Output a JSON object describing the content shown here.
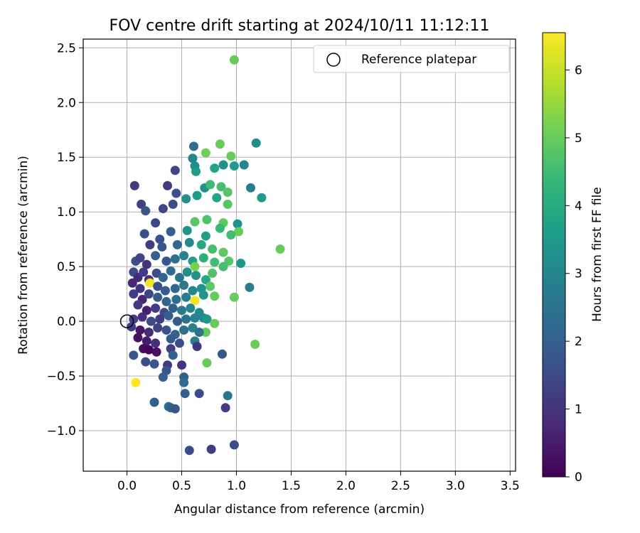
{
  "chart_data": {
    "type": "scatter",
    "title": "FOV centre drift starting at 2024/10/11 11:12:11",
    "xlabel": "Angular distance from reference (arcmin)",
    "ylabel": "Rotation from reference (arcmin)",
    "xlim": [
      -0.4,
      3.55
    ],
    "ylim": [
      -1.37,
      2.58
    ],
    "xticks": [
      0.0,
      0.5,
      1.0,
      1.5,
      2.0,
      2.5,
      3.0,
      3.5
    ],
    "xtick_labels": [
      "0.0",
      "0.5",
      "1.0",
      "1.5",
      "2.0",
      "2.5",
      "3.0",
      "3.5"
    ],
    "yticks": [
      -1.0,
      -0.5,
      0.0,
      0.5,
      1.0,
      1.5,
      2.0,
      2.5
    ],
    "ytick_labels": [
      "−1.0",
      "−0.5",
      "0.0",
      "0.5",
      "1.0",
      "1.5",
      "2.0",
      "2.5"
    ],
    "grid": true,
    "legend": {
      "placement": "top-right",
      "label": "Reference platepar"
    },
    "reference_point": {
      "x": 0.0,
      "y": 0.0
    },
    "colorbar": {
      "label": "Hours from first FF file",
      "range": [
        0,
        6.55
      ],
      "ticks": [
        0,
        1,
        2,
        3,
        4,
        5,
        6
      ],
      "tick_labels": [
        "0",
        "1",
        "2",
        "3",
        "4",
        "5",
        "6"
      ],
      "colormap": "viridis",
      "colors": [
        "#440154",
        "#482878",
        "#3e4989",
        "#31688e",
        "#26828e",
        "#1f9e89",
        "#35b779",
        "#6ece58",
        "#b5de2b",
        "#fde725"
      ]
    },
    "points": [
      [
        0.98,
        2.39,
        5.0
      ],
      [
        1.18,
        1.63,
        3.2
      ],
      [
        0.85,
        1.62,
        5.0
      ],
      [
        0.72,
        1.54,
        5.1
      ],
      [
        0.95,
        1.51,
        5.0
      ],
      [
        0.61,
        1.6,
        2.3
      ],
      [
        0.6,
        1.49,
        3.0
      ],
      [
        0.62,
        1.42,
        3.2
      ],
      [
        0.63,
        1.37,
        3.5
      ],
      [
        0.8,
        1.4,
        3.8
      ],
      [
        0.44,
        1.38,
        1.4
      ],
      [
        1.07,
        1.43,
        3.0
      ],
      [
        0.98,
        1.42,
        3.6
      ],
      [
        0.88,
        1.43,
        3.3
      ],
      [
        0.07,
        1.24,
        1.2
      ],
      [
        0.37,
        1.24,
        1.1
      ],
      [
        0.45,
        1.17,
        1.6
      ],
      [
        1.13,
        1.22,
        2.8
      ],
      [
        1.23,
        1.13,
        3.5
      ],
      [
        0.71,
        1.22,
        3.3
      ],
      [
        0.76,
        1.25,
        4.5
      ],
      [
        0.86,
        1.23,
        4.6
      ],
      [
        0.13,
        1.07,
        1.3
      ],
      [
        0.17,
        1.01,
        1.7
      ],
      [
        0.33,
        1.03,
        1.4
      ],
      [
        0.42,
        1.07,
        1.6
      ],
      [
        0.54,
        1.12,
        3.3
      ],
      [
        0.64,
        1.15,
        3.6
      ],
      [
        0.82,
        1.13,
        3.8
      ],
      [
        0.92,
        1.18,
        4.8
      ],
      [
        1.01,
        0.89,
        3.3
      ],
      [
        1.02,
        0.82,
        5.0
      ],
      [
        0.62,
        0.91,
        4.8
      ],
      [
        0.73,
        0.93,
        4.7
      ],
      [
        0.88,
        0.9,
        4.9
      ],
      [
        0.92,
        1.07,
        4.8
      ],
      [
        0.26,
        0.9,
        1.4
      ],
      [
        0.16,
        0.8,
        1.6
      ],
      [
        0.3,
        0.75,
        1.6
      ],
      [
        0.4,
        0.82,
        2.0
      ],
      [
        0.55,
        0.83,
        3.4
      ],
      [
        0.72,
        0.78,
        3.7
      ],
      [
        0.85,
        0.85,
        4.4
      ],
      [
        0.95,
        0.79,
        4.5
      ],
      [
        0.21,
        0.7,
        1.2
      ],
      [
        0.32,
        0.68,
        1.7
      ],
      [
        0.46,
        0.7,
        2.2
      ],
      [
        0.57,
        0.72,
        3.1
      ],
      [
        0.68,
        0.7,
        3.9
      ],
      [
        0.78,
        0.66,
        4.6
      ],
      [
        0.88,
        0.63,
        4.9
      ],
      [
        1.4,
        0.66,
        5.0
      ],
      [
        1.04,
        0.53,
        3.4
      ],
      [
        0.93,
        0.55,
        4.8
      ],
      [
        0.08,
        0.55,
        1.6
      ],
      [
        0.12,
        0.58,
        1.3
      ],
      [
        0.18,
        0.52,
        1.0
      ],
      [
        0.26,
        0.6,
        2.0
      ],
      [
        0.36,
        0.55,
        1.8
      ],
      [
        0.44,
        0.57,
        2.4
      ],
      [
        0.52,
        0.6,
        2.9
      ],
      [
        0.6,
        0.55,
        3.6
      ],
      [
        0.7,
        0.58,
        4.1
      ],
      [
        0.8,
        0.54,
        4.5
      ],
      [
        0.88,
        0.5,
        4.6
      ],
      [
        0.06,
        0.45,
        1.5
      ],
      [
        0.1,
        0.4,
        0.8
      ],
      [
        0.15,
        0.45,
        1.2
      ],
      [
        0.2,
        0.38,
        0.9
      ],
      [
        0.27,
        0.44,
        1.5
      ],
      [
        0.33,
        0.4,
        2.1
      ],
      [
        0.4,
        0.46,
        2.3
      ],
      [
        0.48,
        0.4,
        2.5
      ],
      [
        0.55,
        0.45,
        3.2
      ],
      [
        0.63,
        0.42,
        3.4
      ],
      [
        0.72,
        0.38,
        3.9
      ],
      [
        0.78,
        0.44,
        4.7
      ],
      [
        0.62,
        0.5,
        5.2
      ],
      [
        0.05,
        0.35,
        0.7
      ],
      [
        0.21,
        0.35,
        6.4
      ],
      [
        0.12,
        0.3,
        1.0
      ],
      [
        0.28,
        0.32,
        1.6
      ],
      [
        0.35,
        0.28,
        1.9
      ],
      [
        0.44,
        0.3,
        2.2
      ],
      [
        0.52,
        0.33,
        2.6
      ],
      [
        0.6,
        0.28,
        3.0
      ],
      [
        0.68,
        0.3,
        3.3
      ],
      [
        0.76,
        0.32,
        4.9
      ],
      [
        1.12,
        0.31,
        2.8
      ],
      [
        0.8,
        0.23,
        5.0
      ],
      [
        0.98,
        0.22,
        5.0
      ],
      [
        0.06,
        0.25,
        1.2
      ],
      [
        0.14,
        0.2,
        0.7
      ],
      [
        0.2,
        0.25,
        1.4
      ],
      [
        0.28,
        0.22,
        1.9
      ],
      [
        0.36,
        0.18,
        2.1
      ],
      [
        0.45,
        0.2,
        2.4
      ],
      [
        0.54,
        0.22,
        2.8
      ],
      [
        0.62,
        0.19,
        6.4
      ],
      [
        0.7,
        0.24,
        3.4
      ],
      [
        0.1,
        0.15,
        1.1
      ],
      [
        0.18,
        0.1,
        0.6
      ],
      [
        0.26,
        0.12,
        1.2
      ],
      [
        0.34,
        0.08,
        1.5
      ],
      [
        0.42,
        0.12,
        2.0
      ],
      [
        0.5,
        0.1,
        2.6
      ],
      [
        0.58,
        0.12,
        3.0
      ],
      [
        0.66,
        0.08,
        3.1
      ],
      [
        0.06,
        0.02,
        1.3
      ],
      [
        0.14,
        0.04,
        0.9
      ],
      [
        0.22,
        0.0,
        1.5
      ],
      [
        0.3,
        0.02,
        1.2
      ],
      [
        0.38,
        0.05,
        2.0
      ],
      [
        0.46,
        0.0,
        1.9
      ],
      [
        0.54,
        0.02,
        2.5
      ],
      [
        0.62,
        0.03,
        2.9
      ],
      [
        0.7,
        0.03,
        3.1
      ],
      [
        0.73,
        0.02,
        3.4
      ],
      [
        0.8,
        -0.02,
        5.0
      ],
      [
        0.72,
        -0.1,
        5.0
      ],
      [
        0.04,
        -0.05,
        1.2
      ],
      [
        0.12,
        -0.08,
        0.4
      ],
      [
        0.2,
        -0.1,
        0.8
      ],
      [
        0.28,
        -0.06,
        1.3
      ],
      [
        0.36,
        -0.08,
        1.6
      ],
      [
        0.44,
        -0.12,
        2.1
      ],
      [
        0.52,
        -0.08,
        2.4
      ],
      [
        0.6,
        -0.06,
        2.9
      ],
      [
        0.66,
        -0.1,
        2.5
      ],
      [
        0.1,
        -0.15,
        0.3
      ],
      [
        0.18,
        -0.18,
        0.5
      ],
      [
        0.26,
        -0.2,
        0.9
      ],
      [
        0.4,
        -0.16,
        1.9
      ],
      [
        0.48,
        -0.2,
        1.5
      ],
      [
        0.62,
        -0.18,
        2.8
      ],
      [
        0.15,
        -0.25,
        0.2
      ],
      [
        0.2,
        -0.26,
        0.1
      ],
      [
        0.27,
        -0.28,
        0.3
      ],
      [
        0.4,
        -0.25,
        1.2
      ],
      [
        0.64,
        -0.23,
        1.0
      ],
      [
        1.17,
        -0.21,
        5.0
      ],
      [
        0.87,
        -0.3,
        1.8
      ],
      [
        0.06,
        -0.31,
        1.7
      ],
      [
        0.42,
        -0.31,
        2.0
      ],
      [
        0.17,
        -0.37,
        1.5
      ],
      [
        0.25,
        -0.39,
        1.8
      ],
      [
        0.37,
        -0.4,
        1.1
      ],
      [
        0.5,
        -0.4,
        1.0
      ],
      [
        0.73,
        -0.38,
        5.0
      ],
      [
        0.36,
        -0.45,
        1.8
      ],
      [
        0.33,
        -0.51,
        2.0
      ],
      [
        0.52,
        -0.51,
        2.0
      ],
      [
        0.52,
        -0.56,
        2.3
      ],
      [
        0.08,
        -0.56,
        6.6
      ],
      [
        0.53,
        -0.66,
        2.0
      ],
      [
        0.66,
        -0.66,
        1.5
      ],
      [
        0.92,
        -0.68,
        2.6
      ],
      [
        0.25,
        -0.74,
        2.0
      ],
      [
        0.38,
        -0.78,
        2.4
      ],
      [
        0.4,
        -0.79,
        2.0
      ],
      [
        0.44,
        -0.8,
        1.8
      ],
      [
        0.9,
        -0.79,
        1.2
      ],
      [
        0.98,
        -1.13,
        1.5
      ],
      [
        0.57,
        -1.18,
        1.5
      ],
      [
        0.77,
        -1.17,
        1.2
      ]
    ]
  }
}
